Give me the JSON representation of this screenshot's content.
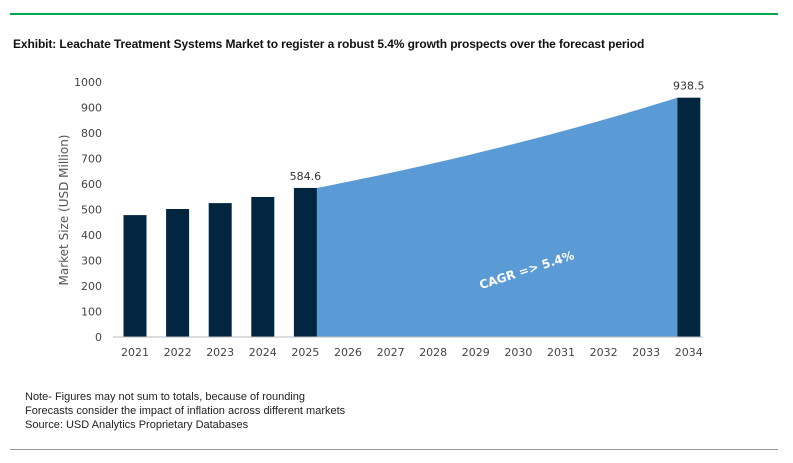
{
  "title": "Exhibit: Leachate Treatment Systems Market to register a robust 5.4% growth prospects over the forecast period",
  "notes": [
    "Note- Figures may not sum to totals, because of rounding",
    "Forecasts consider the impact of inflation across different markets",
    "Source: USD Analytics Proprietary Databases"
  ],
  "colors": {
    "bar": "#022540",
    "area": "#5b9bd5",
    "accent_line": "#00a650"
  },
  "chart_data": {
    "type": "bar",
    "title": "Exhibit: Leachate Treatment Systems Market to register a robust 5.4% growth prospects over the forecast period",
    "xlabel": "",
    "ylabel": "Market Size (USD Million)",
    "ylim": [
      0,
      1000
    ],
    "yticks": [
      0,
      100,
      200,
      300,
      400,
      500,
      600,
      700,
      800,
      900,
      1000
    ],
    "grid": false,
    "categories": [
      "2021",
      "2022",
      "2023",
      "2024",
      "2025",
      "2026",
      "2027",
      "2028",
      "2029",
      "2030",
      "2031",
      "2032",
      "2033",
      "2034"
    ],
    "bars": [
      {
        "year": "2021",
        "value": 478
      },
      {
        "year": "2022",
        "value": 502
      },
      {
        "year": "2023",
        "value": 525
      },
      {
        "year": "2024",
        "value": 549
      },
      {
        "year": "2025",
        "value": 584.6,
        "label": "584.6"
      },
      {
        "year": "2034",
        "value": 938.5,
        "label": "938.5"
      }
    ],
    "area": {
      "from": "2025",
      "to": "2034",
      "start": 584.6,
      "end": 938.5,
      "growth_rate": 0.054
    },
    "annotation": "CAGR => 5.4%"
  }
}
